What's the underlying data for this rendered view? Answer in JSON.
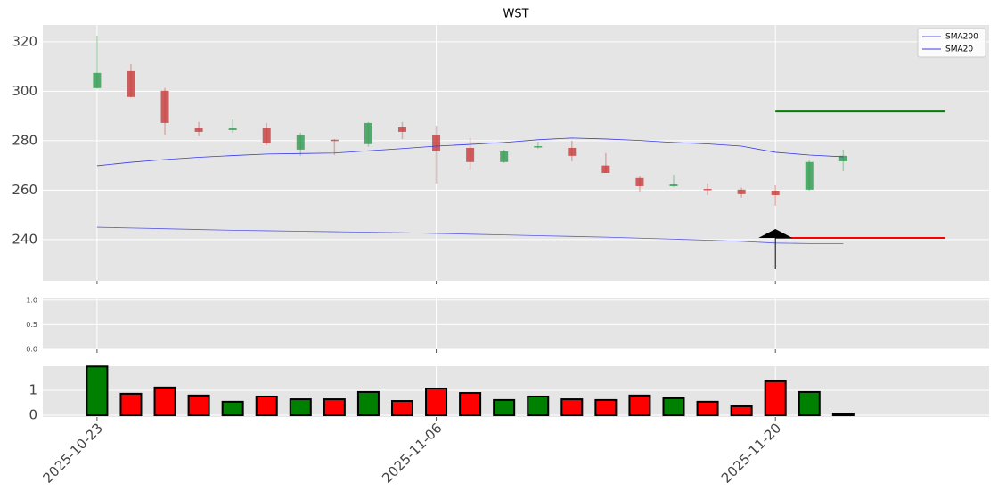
{
  "chart_data": {
    "type": "candlestick",
    "title": "WST",
    "x": [
      0,
      1,
      2,
      3,
      4,
      5,
      6,
      7,
      8,
      9,
      10,
      11,
      12,
      13,
      14,
      15,
      16,
      17,
      18,
      19,
      20,
      21,
      22
    ],
    "xlim": [
      -1.6,
      26.3
    ],
    "xticks": [
      {
        "value": 0,
        "label": "2025-10-23"
      },
      {
        "value": 10,
        "label": "2025-11-06"
      },
      {
        "value": 20,
        "label": "2025-11-20"
      }
    ],
    "ylim": [
      223.4,
      326.8
    ],
    "yticks": [
      240,
      260,
      280,
      300,
      320
    ],
    "grid": true,
    "up_color": "#2e9a4e",
    "down_color": "#c83a3a",
    "open": [
      301.3,
      308.1,
      300.2,
      285.0,
      284.3,
      285.0,
      276.4,
      280.4,
      278.6,
      285.4,
      282.2,
      277.1,
      271.4,
      277.5,
      277.1,
      270.0,
      264.9,
      261.6,
      260.5,
      260.2,
      259.8,
      260.2,
      271.7
    ],
    "close": [
      307.4,
      297.7,
      287.2,
      283.6,
      285.0,
      278.9,
      282.2,
      280.0,
      287.2,
      283.6,
      275.7,
      271.4,
      275.7,
      277.8,
      273.9,
      267.0,
      261.6,
      262.3,
      260.2,
      258.4,
      258.0,
      271.4,
      273.9
    ],
    "high": [
      322.5,
      311.0,
      301.3,
      287.6,
      288.6,
      287.2,
      283.2,
      280.7,
      287.6,
      287.6,
      286.1,
      281.1,
      276.4,
      279.6,
      280.0,
      275.0,
      265.6,
      266.3,
      262.7,
      261.0,
      262.0,
      272.1,
      276.4
    ],
    "low": [
      301.0,
      297.5,
      282.5,
      281.8,
      283.2,
      278.2,
      273.9,
      274.2,
      277.5,
      280.7,
      262.7,
      268.1,
      271.0,
      276.8,
      271.7,
      267.0,
      259.1,
      261.3,
      258.0,
      257.0,
      253.7,
      259.8,
      267.7
    ],
    "series": [
      {
        "name": "SMA200",
        "color": "#5a5ae6",
        "values": [
          245.0,
          244.7,
          244.4,
          244.1,
          243.8,
          243.6,
          243.4,
          243.2,
          243.0,
          242.8,
          242.5,
          242.2,
          241.9,
          241.6,
          241.3,
          241.0,
          240.6,
          240.2,
          239.8,
          239.3,
          238.6,
          238.4,
          238.3
        ]
      },
      {
        "name": "SMA20",
        "color": "#3a3ae8",
        "values": [
          269.9,
          271.3,
          272.4,
          273.3,
          274.0,
          274.6,
          274.8,
          275.0,
          275.9,
          276.8,
          277.8,
          278.5,
          279.3,
          280.4,
          281.1,
          280.7,
          280.1,
          279.3,
          278.7,
          277.8,
          275.3,
          274.2,
          273.5
        ]
      }
    ],
    "legend": "upper right",
    "levels": [
      {
        "value": 291.8,
        "color": "#008000",
        "x_range": [
          20,
          25
        ]
      },
      {
        "value": 240.7,
        "color": "#ff0000",
        "x_range": [
          20,
          25
        ]
      }
    ],
    "signal": {
      "x": 20,
      "y": 242.5,
      "low": 228.1,
      "color": "#000000"
    },
    "panels": [
      {
        "type": "line",
        "ylim": [
          0,
          1.05
        ],
        "yticks": [
          {
            "value": 0,
            "label": "0.0"
          },
          {
            "value": 0.5,
            "label": "0.5"
          },
          {
            "value": 1,
            "label": "1.0"
          }
        ]
      },
      {
        "type": "bar",
        "ylim": [
          -0.07,
          1.96
        ],
        "yticks": [
          0,
          1
        ],
        "values": [
          1.95,
          0.86,
          1.11,
          0.79,
          0.54,
          0.75,
          0.64,
          0.64,
          0.93,
          0.57,
          1.07,
          0.89,
          0.61,
          0.75,
          0.64,
          0.61,
          0.79,
          0.68,
          0.54,
          0.36,
          1.36,
          0.93,
          0.07
        ],
        "colors": [
          "#008000",
          "#ff0000",
          "#ff0000",
          "#ff0000",
          "#008000",
          "#ff0000",
          "#008000",
          "#ff0000",
          "#008000",
          "#ff0000",
          "#ff0000",
          "#ff0000",
          "#008000",
          "#008000",
          "#ff0000",
          "#ff0000",
          "#ff0000",
          "#008000",
          "#ff0000",
          "#ff0000",
          "#ff0000",
          "#008000",
          "#000000"
        ]
      }
    ]
  }
}
